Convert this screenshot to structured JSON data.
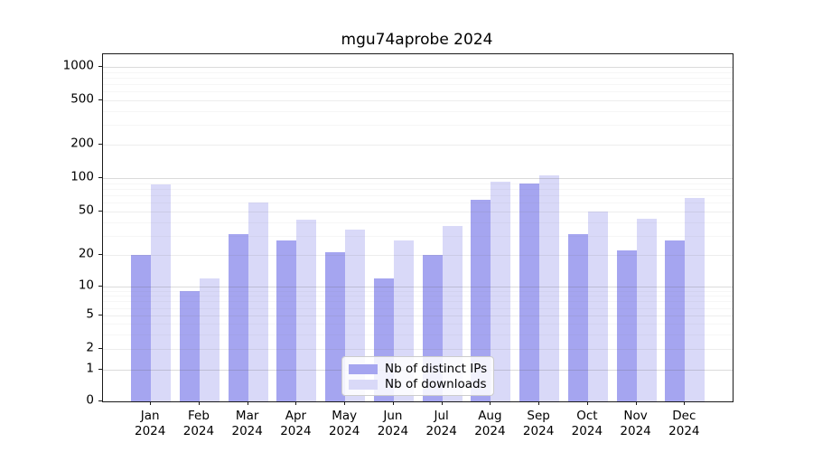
{
  "title": "mgu74aprobe 2024",
  "chart_data": {
    "type": "bar",
    "title": "mgu74aprobe 2024",
    "year_label": "2024",
    "categories": [
      "Jan",
      "Feb",
      "Mar",
      "Apr",
      "May",
      "Jun",
      "Jul",
      "Aug",
      "Sep",
      "Oct",
      "Nov",
      "Dec"
    ],
    "series": [
      {
        "name": "Nb of distinct IPs",
        "color": "#a5a5f0",
        "values": [
          20,
          9,
          31,
          27,
          21,
          12,
          20,
          64,
          90,
          31,
          22,
          27
        ]
      },
      {
        "name": "Nb of downloads",
        "color": "#d9d9f8",
        "values": [
          88,
          12,
          60,
          42,
          34,
          27,
          37,
          93,
          105,
          50,
          43,
          66
        ]
      }
    ],
    "yscale": "symlog",
    "yticks": [
      0,
      1,
      2,
      5,
      10,
      20,
      50,
      100,
      200,
      500,
      1000
    ],
    "ylim": [
      0,
      1400
    ],
    "xlabel": "",
    "ylabel": "",
    "grid": "horizontal major+minor",
    "legend_position": "lower center"
  },
  "legend": {
    "items": [
      {
        "label": "Nb of distinct IPs",
        "color": "#a5a5f0"
      },
      {
        "label": "Nb of downloads",
        "color": "#d9d9f8"
      }
    ]
  },
  "colors": {
    "background": "#ffffff",
    "spine": "#1a1a1a",
    "grid_major": "#d9d9d9",
    "grid_minor": "#f1f1f1",
    "bar_ips": "#a5a5f0",
    "bar_downloads": "#d9d9f8"
  }
}
